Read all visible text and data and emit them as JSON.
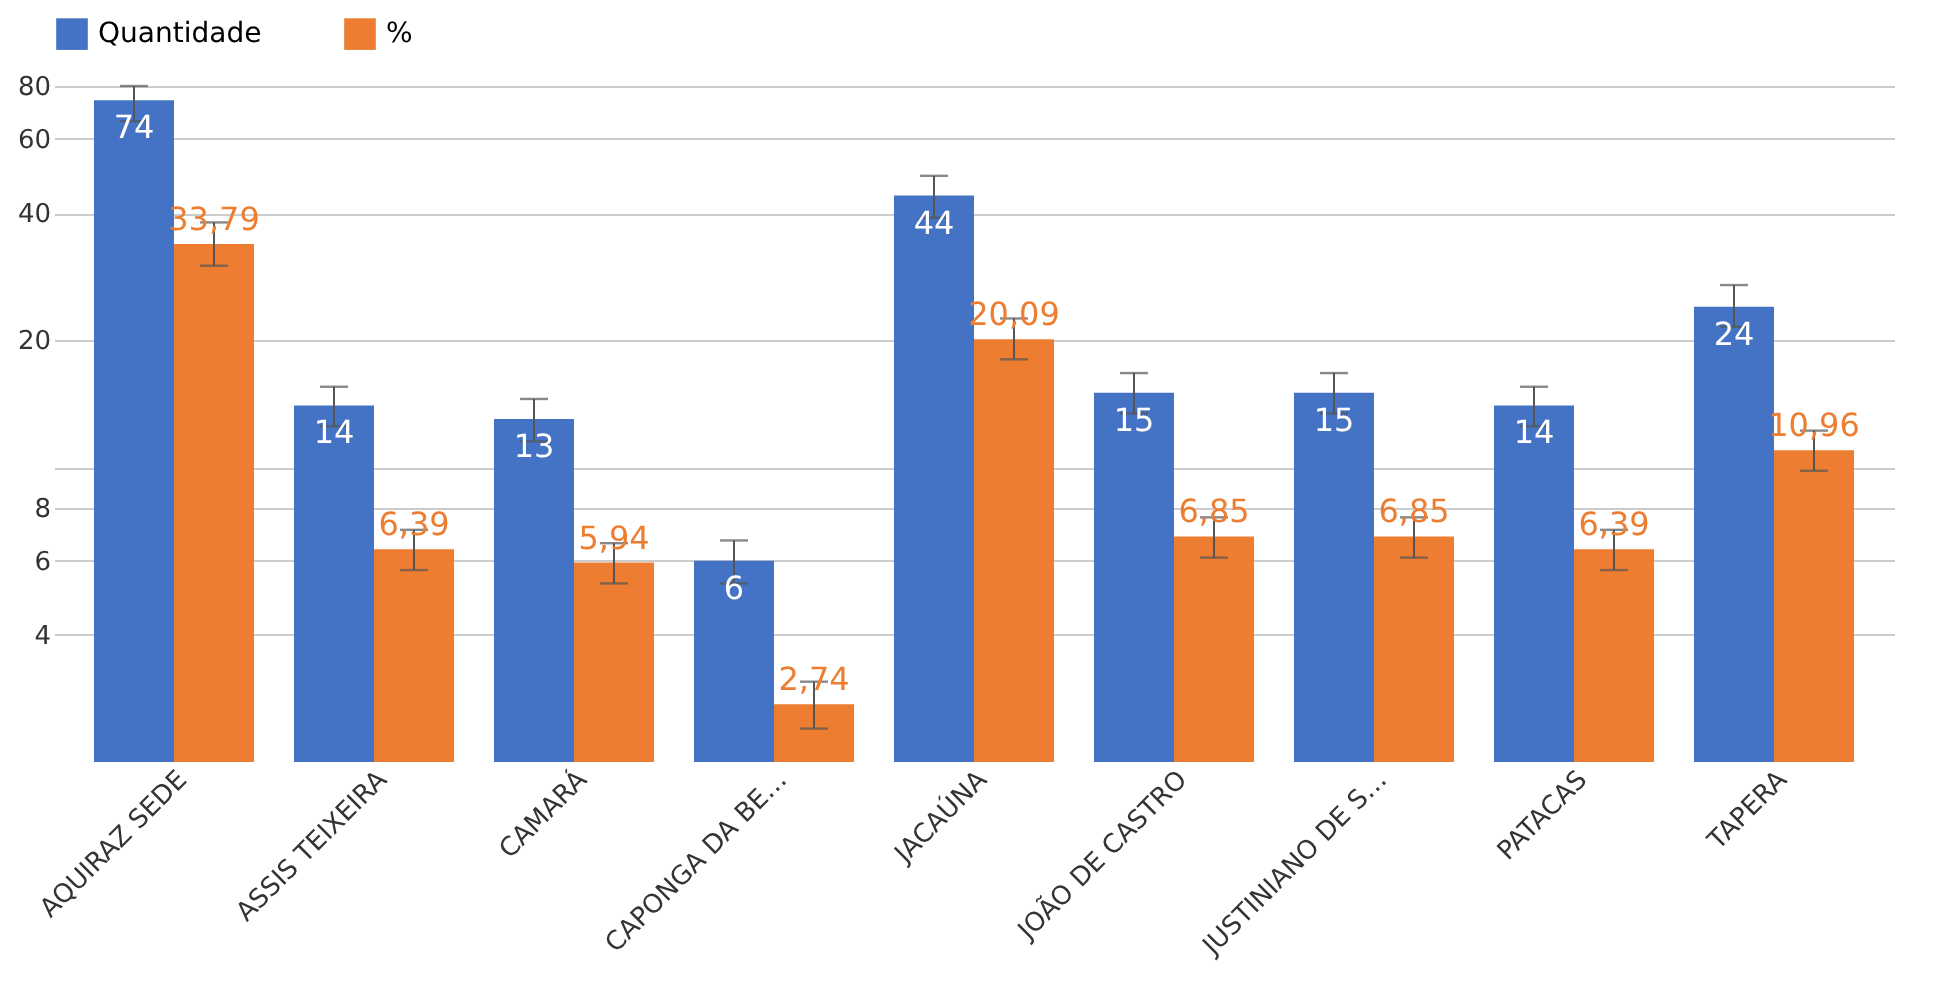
{
  "chart_data": {
    "type": "bar",
    "categories": [
      "AQUIRAZ SEDE",
      "ASSIS TEIXEIRA",
      "CAMARÁ",
      "CAPONGA DA BE…",
      "JACAÚNA",
      "JOÃO DE CASTRO",
      "JUSTINIANO DE S…",
      "PATACAS",
      "TAPERA"
    ],
    "series": [
      {
        "name": "Quantidade",
        "color": "#4472c4",
        "values": [
          74,
          14,
          13,
          6,
          44,
          15,
          15,
          14,
          24
        ],
        "value_labels": [
          "74",
          "14",
          "13",
          "6",
          "44",
          "15",
          "15",
          "14",
          "24"
        ],
        "errors": [
          [
            66,
            80
          ],
          [
            12.5,
            15.5
          ],
          [
            11.5,
            14.5
          ],
          [
            5.3,
            6.7
          ],
          [
            39,
            49
          ],
          [
            13.4,
            16.7
          ],
          [
            13.4,
            16.7
          ],
          [
            12.5,
            15.5
          ],
          [
            21.5,
            27
          ]
        ]
      },
      {
        "name": "%",
        "color": "#ed7d31",
        "values": [
          33.79,
          6.39,
          5.94,
          2.74,
          20.09,
          6.85,
          6.85,
          6.39,
          10.96
        ],
        "value_labels": [
          "33,79",
          "6,39",
          "5,94",
          "2,74",
          "20,09",
          "6,85",
          "6,85",
          "6,39",
          "10,96"
        ],
        "errors": [
          [
            30,
            38
          ],
          [
            5.7,
            7.1
          ],
          [
            5.3,
            6.6
          ],
          [
            2.4,
            3.1
          ],
          [
            18,
            22.5
          ],
          [
            6.1,
            7.6
          ],
          [
            6.1,
            7.6
          ],
          [
            5.7,
            7.1
          ],
          [
            9.8,
            12.2
          ]
        ]
      }
    ],
    "log": "y",
    "ylim": [
      2,
      80
    ],
    "yticks": [
      4,
      6,
      8,
      {
        "value": 10,
        "label": null
      },
      20,
      40,
      60,
      80
    ],
    "grid": "y",
    "legend": "top"
  }
}
